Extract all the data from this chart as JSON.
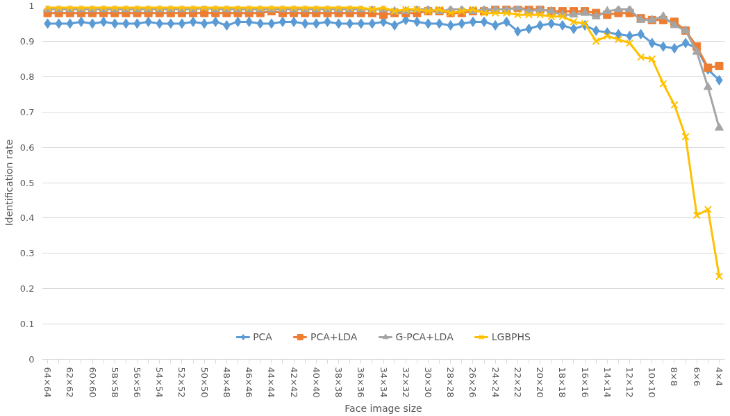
{
  "chart_data": {
    "type": "line",
    "xlabel": "Face image size",
    "ylabel": "Identification rate",
    "categories": [
      "64×64",
      null,
      "62×62",
      null,
      "60×60",
      null,
      "58×58",
      null,
      "56×56",
      null,
      "54×54",
      null,
      "52×52",
      null,
      "50×50",
      null,
      "48×48",
      null,
      "46×46",
      null,
      "44×44",
      null,
      "42×42",
      null,
      "40×40",
      null,
      "38×38",
      null,
      "36×36",
      null,
      "34×34",
      null,
      "32×32",
      null,
      "30×30",
      null,
      "28×28",
      null,
      "26×26",
      null,
      "24×24",
      null,
      "22×22",
      null,
      "20×20",
      null,
      "18×18",
      null,
      "16×16",
      null,
      "14×14",
      null,
      "12×12",
      null,
      "10×10",
      null,
      "8×8",
      null,
      "6×6",
      null,
      "4×4"
    ],
    "series": [
      {
        "name": "PCA",
        "color": "#5b9bd5",
        "marker": "diamond",
        "values": [
          0.95,
          0.95,
          0.95,
          0.955,
          0.95,
          0.955,
          0.95,
          0.95,
          0.95,
          0.955,
          0.95,
          0.95,
          0.95,
          0.955,
          0.95,
          0.955,
          0.945,
          0.955,
          0.955,
          0.95,
          0.95,
          0.955,
          0.955,
          0.95,
          0.95,
          0.955,
          0.95,
          0.95,
          0.95,
          0.95,
          0.955,
          0.945,
          0.96,
          0.955,
          0.95,
          0.95,
          0.945,
          0.95,
          0.955,
          0.955,
          0.945,
          0.955,
          0.928,
          0.935,
          0.945,
          0.95,
          0.945,
          0.935,
          0.945,
          0.93,
          0.925,
          0.92,
          0.915,
          0.92,
          0.895,
          0.885,
          0.88,
          0.895,
          0.88,
          0.82,
          0.79
        ]
      },
      {
        "name": "PCA+LDA",
        "color": "#ed7d31",
        "marker": "square",
        "values": [
          0.98,
          0.98,
          0.98,
          0.98,
          0.98,
          0.98,
          0.98,
          0.98,
          0.98,
          0.98,
          0.98,
          0.98,
          0.98,
          0.98,
          0.98,
          0.98,
          0.98,
          0.98,
          0.98,
          0.98,
          0.985,
          0.98,
          0.98,
          0.98,
          0.98,
          0.98,
          0.98,
          0.98,
          0.98,
          0.98,
          0.975,
          0.98,
          0.98,
          0.98,
          0.985,
          0.985,
          0.98,
          0.98,
          0.985,
          0.985,
          0.99,
          0.99,
          0.995,
          0.99,
          0.99,
          0.985,
          0.985,
          0.985,
          0.985,
          0.98,
          0.975,
          0.98,
          0.98,
          0.965,
          0.96,
          0.96,
          0.955,
          0.93,
          0.885,
          0.825,
          0.83
        ]
      },
      {
        "name": "G-PCA+LDA",
        "color": "#a5a5a5",
        "marker": "triangle",
        "values": [
          0.99,
          0.99,
          0.99,
          0.99,
          0.99,
          0.99,
          0.99,
          0.99,
          0.99,
          0.99,
          0.99,
          0.99,
          0.99,
          0.99,
          0.995,
          0.99,
          0.99,
          0.99,
          0.99,
          0.99,
          0.99,
          0.99,
          0.99,
          0.99,
          0.99,
          0.99,
          0.99,
          0.99,
          0.99,
          0.99,
          0.99,
          0.985,
          0.985,
          0.99,
          0.99,
          0.985,
          0.99,
          0.99,
          0.985,
          0.99,
          0.99,
          0.99,
          0.995,
          0.985,
          0.99,
          0.985,
          0.975,
          0.975,
          0.98,
          0.97,
          0.985,
          0.99,
          0.99,
          0.96,
          0.96,
          0.97,
          0.945,
          0.93,
          0.87,
          0.77,
          0.655
        ]
      },
      {
        "name": "LGBPHS",
        "color": "#ffc000",
        "marker": "cross",
        "values": [
          0.995,
          0.995,
          0.995,
          0.995,
          0.995,
          0.995,
          0.995,
          0.995,
          0.995,
          0.995,
          0.995,
          0.995,
          0.995,
          0.995,
          0.995,
          0.995,
          0.995,
          0.995,
          0.995,
          0.995,
          0.995,
          0.995,
          0.995,
          0.995,
          0.995,
          0.995,
          0.995,
          0.995,
          0.995,
          0.99,
          0.995,
          0.985,
          0.99,
          0.99,
          0.985,
          0.99,
          0.98,
          0.985,
          0.99,
          0.98,
          0.98,
          0.98,
          0.975,
          0.975,
          0.975,
          0.97,
          0.97,
          0.955,
          0.95,
          0.9,
          0.915,
          0.905,
          0.895,
          0.855,
          0.85,
          0.78,
          0.72,
          0.63,
          0.408,
          0.424,
          0.235
        ]
      }
    ],
    "ylim": [
      0,
      1
    ],
    "yticks": [
      0,
      0.1,
      0.2,
      0.3,
      0.4,
      0.5,
      0.6,
      0.7,
      0.8,
      0.9,
      1
    ],
    "grid": "y",
    "legend": "bottom",
    "line_style": "solid"
  }
}
